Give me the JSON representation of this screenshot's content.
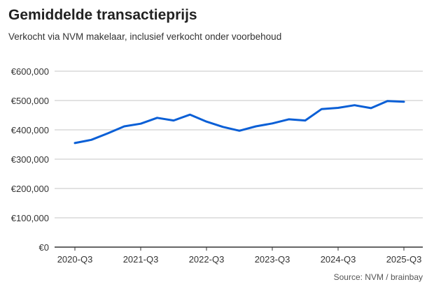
{
  "chart_data": {
    "type": "line",
    "title": "Gemiddelde transactieprijs",
    "subtitle": "Verkocht via NVM makelaar, inclusief verkocht onder voorbehoud",
    "source": "Source: NVM / brainbay",
    "xlabel": "",
    "ylabel": "",
    "ylim": [
      0,
      600000
    ],
    "yticks": [
      0,
      100000,
      200000,
      300000,
      400000,
      500000,
      600000
    ],
    "ytick_labels": [
      "€0",
      "€100,000",
      "€200,000",
      "€300,000",
      "€400,000",
      "€500,000",
      "€600,000"
    ],
    "xtick_labels": [
      "2020-Q3",
      "2021-Q3",
      "2022-Q3",
      "2023-Q3",
      "2024-Q3",
      "2025-Q3"
    ],
    "grid": true,
    "x": [
      "2020-Q3",
      "2020-Q4",
      "2021-Q1",
      "2021-Q2",
      "2021-Q3",
      "2021-Q4",
      "2022-Q1",
      "2022-Q2",
      "2022-Q3",
      "2022-Q4",
      "2023-Q1",
      "2023-Q2",
      "2023-Q3",
      "2023-Q4",
      "2024-Q1",
      "2024-Q2",
      "2024-Q3",
      "2024-Q4",
      "2025-Q1",
      "2025-Q2",
      "2025-Q3"
    ],
    "series": [
      {
        "name": "Gemiddelde transactieprijs",
        "color": "#0a5fd6",
        "values": [
          355000,
          366000,
          388000,
          412000,
          421000,
          441000,
          432000,
          452000,
          428000,
          410000,
          397000,
          412000,
          422000,
          436000,
          432000,
          471000,
          475000,
          484000,
          474000,
          498000,
          496000
        ]
      }
    ]
  }
}
